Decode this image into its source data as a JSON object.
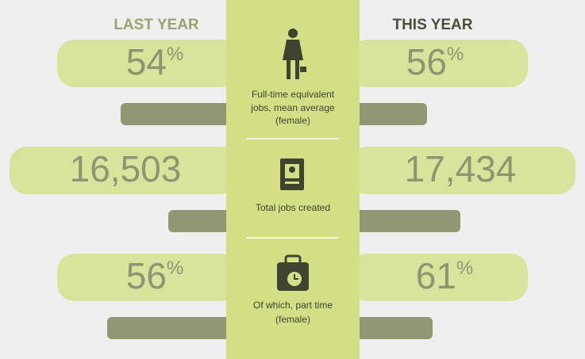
{
  "header": {
    "left": "LAST YEAR",
    "right": "THIS YEAR"
  },
  "rows": [
    {
      "label_lines": [
        "Full-time equivalent",
        "jobs, mean average",
        "(female)"
      ],
      "last": "54",
      "last_unit": "%",
      "this": "56",
      "this_unit": "%"
    },
    {
      "label_lines": [
        "Total jobs created"
      ],
      "last": "16,503",
      "last_unit": "",
      "this": "17,434",
      "this_unit": ""
    },
    {
      "label_lines": [
        "Of which, part time",
        "(female)"
      ],
      "last": "56",
      "last_unit": "%",
      "this": "61",
      "this_unit": "%"
    }
  ]
}
